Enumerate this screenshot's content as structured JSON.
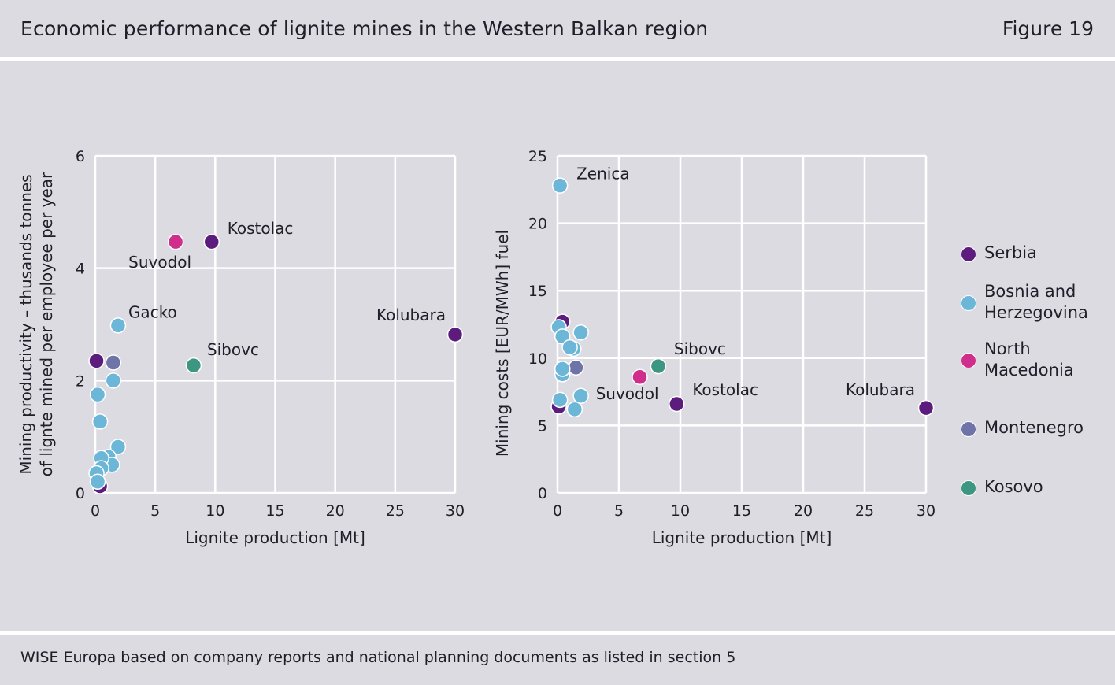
{
  "header": {
    "title": "Economic performance of lignite mines in the Western Balkan region",
    "figure": "Figure 19"
  },
  "footer": {
    "source": "WISE Europa based on company reports and national planning documents as listed in section 5"
  },
  "colors": {
    "Serbia": "#5b1c7e",
    "Bosnia and Herzegovina": "#6cb6d8",
    "North Macedonia": "#cf2e8c",
    "Montenegro": "#6e73a8",
    "Kosovo": "#3d9681",
    "grid": "#ffffff"
  },
  "legend": {
    "items": [
      {
        "label_lines": [
          "Serbia"
        ],
        "color": "#5b1c7e"
      },
      {
        "label_lines": [
          "Bosnia and",
          "Herzegovina"
        ],
        "color": "#6cb6d8"
      },
      {
        "label_lines": [
          "North",
          "Macedonia"
        ],
        "color": "#cf2e8c"
      },
      {
        "label_lines": [
          "Montenegro"
        ],
        "color": "#6e73a8"
      },
      {
        "label_lines": [
          "Kosovo"
        ],
        "color": "#3d9681"
      }
    ]
  },
  "chart_data": [
    {
      "type": "scatter",
      "title": "",
      "xlabel": "Lignite production [Mt]",
      "ylabel_lines": [
        "Mining productivity – thusands tonnes",
        "of lignte mined per employee per year"
      ],
      "xlim": [
        0,
        30
      ],
      "ylim": [
        0,
        6
      ],
      "xticks": [
        0,
        5,
        10,
        15,
        20,
        25,
        30
      ],
      "yticks": [
        0,
        2,
        4,
        6
      ],
      "grid": true,
      "points": [
        {
          "x": 0.1,
          "y": 2.35,
          "country": "Serbia"
        },
        {
          "x": 0.4,
          "y": 0.12,
          "country": "Serbia"
        },
        {
          "x": 9.7,
          "y": 4.47,
          "country": "Serbia",
          "label": "Kostolac"
        },
        {
          "x": 30.0,
          "y": 2.82,
          "country": "Serbia",
          "label": "Kolubara"
        },
        {
          "x": 6.7,
          "y": 4.47,
          "country": "North Macedonia",
          "label": "Suvodol"
        },
        {
          "x": 8.2,
          "y": 2.27,
          "country": "Kosovo",
          "label": "Sibovc"
        },
        {
          "x": 1.5,
          "y": 2.32,
          "country": "Montenegro"
        },
        {
          "x": 1.9,
          "y": 2.98,
          "country": "Bosnia and Herzegovina",
          "label": "Gacko"
        },
        {
          "x": 1.5,
          "y": 2.0,
          "country": "Bosnia and Herzegovina"
        },
        {
          "x": 0.2,
          "y": 1.75,
          "country": "Bosnia and Herzegovina"
        },
        {
          "x": 0.4,
          "y": 1.27,
          "country": "Bosnia and Herzegovina"
        },
        {
          "x": 1.9,
          "y": 0.82,
          "country": "Bosnia and Herzegovina"
        },
        {
          "x": 1.1,
          "y": 0.64,
          "country": "Bosnia and Herzegovina"
        },
        {
          "x": 1.4,
          "y": 0.5,
          "country": "Bosnia and Herzegovina"
        },
        {
          "x": 0.5,
          "y": 0.62,
          "country": "Bosnia and Herzegovina"
        },
        {
          "x": 0.5,
          "y": 0.44,
          "country": "Bosnia and Herzegovina"
        },
        {
          "x": 0.1,
          "y": 0.35,
          "country": "Bosnia and Herzegovina"
        },
        {
          "x": 0.2,
          "y": 0.2,
          "country": "Bosnia and Herzegovina"
        }
      ]
    },
    {
      "type": "scatter",
      "title": "",
      "xlabel": "Lignite production [Mt]",
      "ylabel_lines": [
        "Mining costs [EUR/MWh] fuel"
      ],
      "xlim": [
        0,
        30
      ],
      "ylim": [
        0,
        25
      ],
      "xticks": [
        0,
        5,
        10,
        15,
        20,
        25,
        30
      ],
      "yticks": [
        0,
        5,
        10,
        15,
        20,
        25
      ],
      "grid": true,
      "points": [
        {
          "x": 0.4,
          "y": 12.7,
          "country": "Serbia"
        },
        {
          "x": 0.1,
          "y": 6.4,
          "country": "Serbia"
        },
        {
          "x": 9.7,
          "y": 6.6,
          "country": "Serbia",
          "label": "Kostolac"
        },
        {
          "x": 30.0,
          "y": 6.3,
          "country": "Serbia",
          "label": "Kolubara"
        },
        {
          "x": 6.7,
          "y": 8.6,
          "country": "North Macedonia",
          "label": "Suvodol"
        },
        {
          "x": 8.2,
          "y": 9.4,
          "country": "Kosovo",
          "label": "Sibovc"
        },
        {
          "x": 1.5,
          "y": 9.3,
          "country": "Montenegro"
        },
        {
          "x": 0.2,
          "y": 22.8,
          "country": "Bosnia and Herzegovina",
          "label": "Zenica"
        },
        {
          "x": 0.1,
          "y": 12.3,
          "country": "Bosnia and Herzegovina"
        },
        {
          "x": 0.4,
          "y": 11.6,
          "country": "Bosnia and Herzegovina"
        },
        {
          "x": 1.9,
          "y": 11.9,
          "country": "Bosnia and Herzegovina"
        },
        {
          "x": 1.3,
          "y": 10.7,
          "country": "Bosnia and Herzegovina"
        },
        {
          "x": 1.0,
          "y": 10.8,
          "country": "Bosnia and Herzegovina"
        },
        {
          "x": 0.4,
          "y": 8.8,
          "country": "Bosnia and Herzegovina"
        },
        {
          "x": 0.4,
          "y": 9.2,
          "country": "Bosnia and Herzegovina"
        },
        {
          "x": 1.9,
          "y": 7.2,
          "country": "Bosnia and Herzegovina"
        },
        {
          "x": 0.2,
          "y": 6.9,
          "country": "Bosnia and Herzegovina"
        },
        {
          "x": 1.4,
          "y": 6.2,
          "country": "Bosnia and Herzegovina"
        }
      ]
    }
  ]
}
